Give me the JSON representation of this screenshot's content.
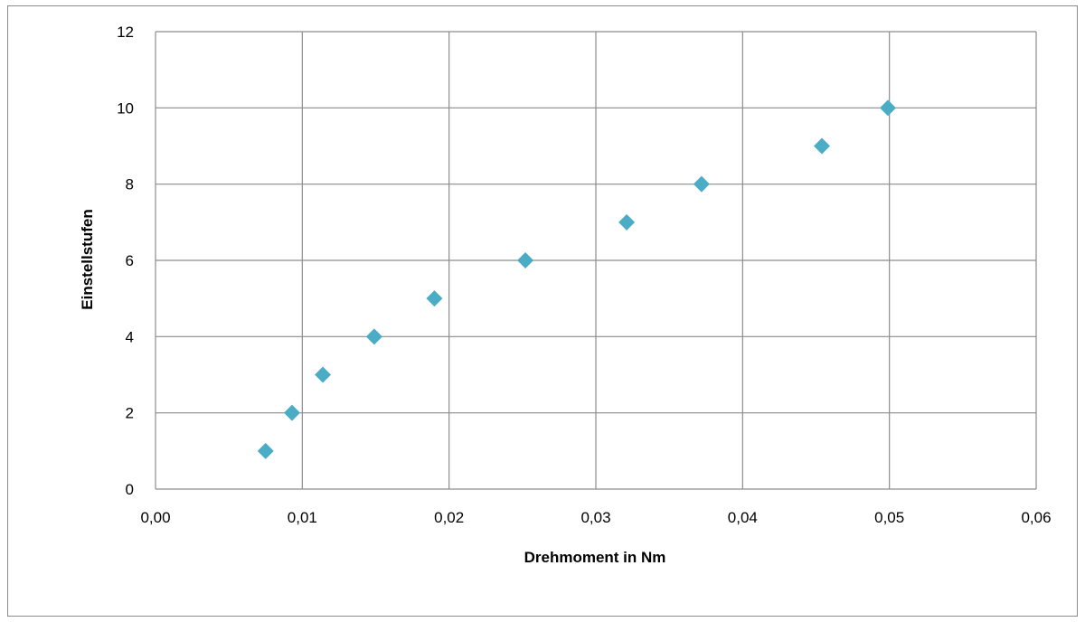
{
  "chart_data": {
    "type": "scatter",
    "title": "",
    "xlabel": "Drehmoment in Nm",
    "ylabel": "Einstellstufen",
    "xlim": [
      0,
      0.06
    ],
    "ylim": [
      0,
      12
    ],
    "x_ticks": [
      {
        "value": 0,
        "label": "0,00"
      },
      {
        "value": 0.01,
        "label": "0,01"
      },
      {
        "value": 0.02,
        "label": "0,02"
      },
      {
        "value": 0.03,
        "label": "0,03"
      },
      {
        "value": 0.04,
        "label": "0,04"
      },
      {
        "value": 0.05,
        "label": "0,05"
      },
      {
        "value": 0.06,
        "label": "0,06"
      }
    ],
    "y_ticks": [
      {
        "value": 0,
        "label": "0"
      },
      {
        "value": 2,
        "label": "2"
      },
      {
        "value": 4,
        "label": "4"
      },
      {
        "value": 6,
        "label": "6"
      },
      {
        "value": 8,
        "label": "8"
      },
      {
        "value": 10,
        "label": "10"
      },
      {
        "value": 12,
        "label": "12"
      }
    ],
    "grid": true,
    "legend": "none",
    "marker": "diamond",
    "marker_color": "#4BACC6",
    "grid_color": "#8c8c8c",
    "series": [
      {
        "points": [
          {
            "x": 0.0075,
            "y": 1
          },
          {
            "x": 0.0093,
            "y": 2
          },
          {
            "x": 0.0114,
            "y": 3
          },
          {
            "x": 0.0149,
            "y": 4
          },
          {
            "x": 0.019,
            "y": 5
          },
          {
            "x": 0.0252,
            "y": 6
          },
          {
            "x": 0.0321,
            "y": 7
          },
          {
            "x": 0.0372,
            "y": 8
          },
          {
            "x": 0.0454,
            "y": 9
          },
          {
            "x": 0.0499,
            "y": 10
          }
        ]
      }
    ]
  }
}
